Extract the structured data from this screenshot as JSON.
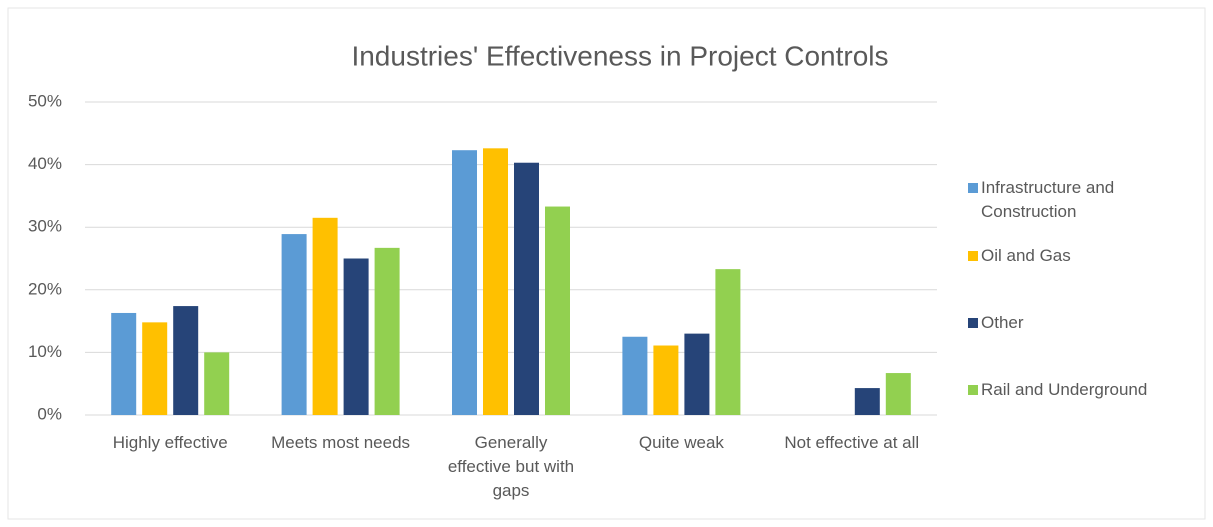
{
  "chart_data": {
    "type": "bar",
    "title": "Industries' Effectiveness in Project Controls",
    "categories": [
      "Highly effective",
      "Meets most needs",
      "Generally effective but with gaps",
      "Quite weak",
      "Not effective at all"
    ],
    "series": [
      {
        "name": "Infrastructure and Construction",
        "color": "#5b9bd5",
        "values": [
          16.3,
          28.9,
          42.3,
          12.5,
          0
        ]
      },
      {
        "name": "Oil and Gas",
        "color": "#ffc000",
        "values": [
          14.8,
          31.5,
          42.6,
          11.1,
          0
        ]
      },
      {
        "name": "Other",
        "color": "#264478",
        "values": [
          17.4,
          25,
          40.3,
          13,
          4.3
        ]
      },
      {
        "name": "Rail and Underground",
        "color": "#92d050",
        "values": [
          10,
          26.7,
          33.3,
          23.3,
          6.7
        ]
      }
    ],
    "ylim": [
      0,
      50
    ],
    "yticks": [
      {
        "value": 0,
        "label": "0%"
      },
      {
        "value": 10,
        "label": "10%"
      },
      {
        "value": 20,
        "label": "20%"
      },
      {
        "value": 30,
        "label": "30%"
      },
      {
        "value": 40,
        "label": "40%"
      },
      {
        "value": 50,
        "label": "50%"
      }
    ],
    "grid": true,
    "legend": "right"
  }
}
